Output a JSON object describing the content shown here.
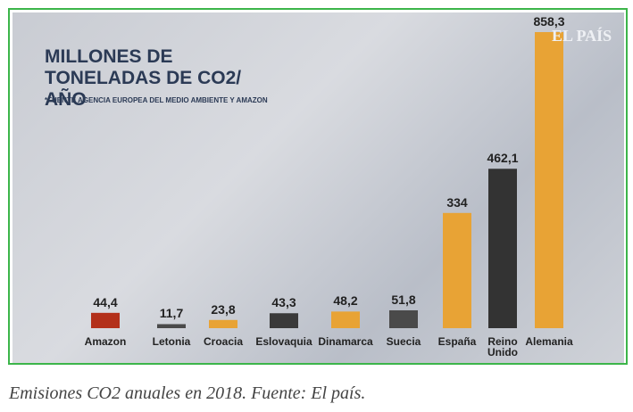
{
  "chart_data": {
    "type": "bar",
    "title": "MILLONES DE TONELADAS DE CO2/ AÑO",
    "subtitle": "*FUENTE AGENCIA EUROPEA DEL MEDIO AMBIENTE Y AMAZON",
    "watermark": "EL PAÍS",
    "categories": [
      "Amazon",
      "Letonia",
      "Croacia",
      "Eslovaquia",
      "Dinamarca",
      "Suecia",
      "España",
      "Reino Unido",
      "Alemania"
    ],
    "values": [
      44.4,
      11.7,
      23.8,
      43.3,
      48.2,
      51.8,
      334,
      462.1,
      858.3
    ],
    "value_labels": [
      "44,4",
      "11,7",
      "23,8",
      "43,3",
      "48,2",
      "51,8",
      "334",
      "462,1",
      "858,3"
    ],
    "colors": [
      "#b3301a",
      "#4a4a4a",
      "#e8a335",
      "#3a3a3a",
      "#e8a335",
      "#4a4a4a",
      "#e8a335",
      "#333333",
      "#e8a335"
    ]
  },
  "caption": "Emisiones CO2 anuales en 2018. Fuente: El país."
}
